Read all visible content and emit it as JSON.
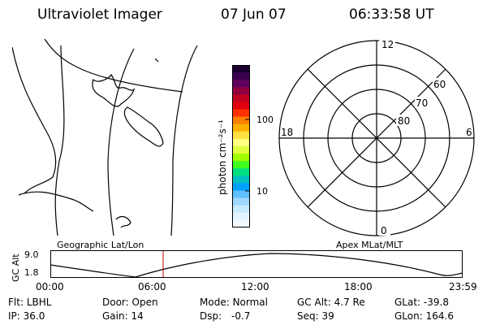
{
  "header": {
    "instrument": "Ultraviolet Imager",
    "date": "07 Jun 07",
    "time": "06:33:58 UT"
  },
  "colorbar": {
    "label": "photon cm⁻²s⁻¹",
    "ticks": [
      "100",
      "10"
    ],
    "colors": [
      "#1a0030",
      "#3a0050",
      "#600060",
      "#900040",
      "#c00020",
      "#e00010",
      "#ff3000",
      "#ff8000",
      "#ffb000",
      "#ffe040",
      "#ffff80",
      "#e0ff40",
      "#a0ff00",
      "#40ff20",
      "#00e080",
      "#00c0c0",
      "#00a0ff",
      "#60c0ff",
      "#a0d8ff",
      "#c8ecff",
      "#e4f4ff",
      "#f2f8ff"
    ]
  },
  "polar": {
    "lat_labels": [
      "80",
      "70",
      "60"
    ],
    "mlt_labels": {
      "top": "12",
      "bottom": "0",
      "left": "18",
      "right": "6"
    }
  },
  "map_labels": {
    "left": "Geographic Lat/Lon",
    "right": "Apex MLat/MLT"
  },
  "altitude": {
    "axis_label": "GC Alt",
    "ymax": "9.0",
    "ymin": "1.8",
    "time_ticks": [
      "00:00",
      "06:00",
      "12:00",
      "18:00",
      "23:59"
    ],
    "marker_color": "#c00000"
  },
  "info": {
    "row1": [
      {
        "label": "Flt:",
        "value": "LBHL"
      },
      {
        "label": "Door:",
        "value": "Open"
      },
      {
        "label": "Mode:",
        "value": "Normal"
      },
      {
        "label": "GC Alt:",
        "value": "4.7 Re"
      },
      {
        "label": "GLat:",
        "value": "-39.8"
      }
    ],
    "row2": [
      {
        "label": "IP:",
        "value": "36.0"
      },
      {
        "label": "Gain:",
        "value": "14"
      },
      {
        "label": "Dsp:",
        "value": "-0.7"
      },
      {
        "label": "Seq:",
        "value": "39"
      },
      {
        "label": "GLon:",
        "value": "164.6"
      }
    ]
  }
}
